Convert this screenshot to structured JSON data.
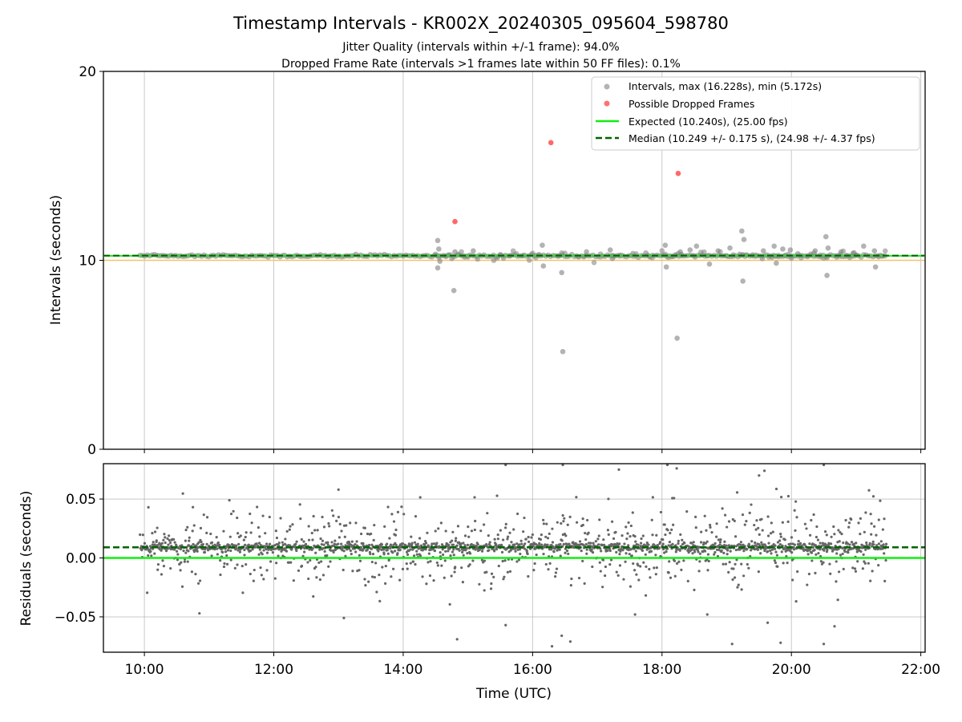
{
  "title": "Timestamp Intervals - KR002X_20240305_095604_598780",
  "subtitle_1": "Jitter Quality (intervals within +/-1 frame): 94.0%",
  "subtitle_2": "Dropped Frame Rate (intervals >1 frames late within 50 FF files): 0.1%",
  "colors": {
    "intervals": "#808080",
    "dropped": "#ff4d4d",
    "expected": "#11ee11",
    "median": "#006400",
    "reference_line": "#f3c36b",
    "grid": "#b0b0b0"
  },
  "chart_data": [
    {
      "type": "scatter",
      "panel": "intervals",
      "ylabel": "Intervals (seconds)",
      "xlim": [
        "09:22",
        "22:04"
      ],
      "ylim": [
        0,
        20
      ],
      "yticks": [
        0,
        10,
        20
      ],
      "ytick_labels": [
        "0",
        "10",
        "20"
      ],
      "xticks": [
        "10:00",
        "12:00",
        "14:00",
        "16:00",
        "18:00",
        "20:00",
        "22:00"
      ],
      "grid": "x",
      "legend_position": "top-right",
      "legend": [
        {
          "label": "Intervals, max (16.228s), min (5.172s)",
          "kind": "marker",
          "color": "#808080"
        },
        {
          "label": "Possible Dropped Frames",
          "kind": "marker",
          "color": "#ff4d4d"
        },
        {
          "label": "Expected (10.240s), (25.00 fps)",
          "kind": "line",
          "color": "#11ee11"
        },
        {
          "label": "Median (10.249 +/- 0.175 s), (24.98 +/- 4.37 fps)",
          "kind": "dashed",
          "color": "#006400"
        }
      ],
      "hlines": {
        "expected": 10.24,
        "median": 10.249,
        "reference": 10.0
      },
      "series": [
        {
          "name": "Intervals, max (16.228s), min (5.172s)",
          "baseline_span": [
            "09:56",
            "21:28"
          ],
          "baseline_value": 10.24,
          "outliers": [
            {
              "x": "14:32",
              "y": 11.05
            },
            {
              "x": "14:32",
              "y": 9.6
            },
            {
              "x": "14:33",
              "y": 10.6
            },
            {
              "x": "14:34",
              "y": 9.95
            },
            {
              "x": "14:47",
              "y": 8.4
            },
            {
              "x": "14:48",
              "y": 10.45
            },
            {
              "x": "15:05",
              "y": 10.5
            },
            {
              "x": "16:09",
              "y": 10.8
            },
            {
              "x": "16:10",
              "y": 9.7
            },
            {
              "x": "16:27",
              "y": 9.35
            },
            {
              "x": "16:28",
              "y": 5.17
            },
            {
              "x": "16:50",
              "y": 10.45
            },
            {
              "x": "17:12",
              "y": 10.55
            },
            {
              "x": "17:14",
              "y": 10.1
            },
            {
              "x": "18:03",
              "y": 10.8
            },
            {
              "x": "18:04",
              "y": 9.65
            },
            {
              "x": "18:14",
              "y": 5.88
            },
            {
              "x": "18:17",
              "y": 10.45
            },
            {
              "x": "18:26",
              "y": 10.55
            },
            {
              "x": "18:32",
              "y": 10.75
            },
            {
              "x": "18:44",
              "y": 9.8
            },
            {
              "x": "18:52",
              "y": 10.5
            },
            {
              "x": "19:03",
              "y": 10.65
            },
            {
              "x": "19:14",
              "y": 11.55
            },
            {
              "x": "19:15",
              "y": 8.9
            },
            {
              "x": "19:16",
              "y": 11.1
            },
            {
              "x": "19:34",
              "y": 10.5
            },
            {
              "x": "19:44",
              "y": 10.75
            },
            {
              "x": "19:46",
              "y": 9.85
            },
            {
              "x": "19:52",
              "y": 10.6
            },
            {
              "x": "19:59",
              "y": 10.55
            },
            {
              "x": "20:06",
              "y": 10.35
            },
            {
              "x": "20:22",
              "y": 10.5
            },
            {
              "x": "20:32",
              "y": 11.25
            },
            {
              "x": "20:33",
              "y": 9.2
            },
            {
              "x": "20:34",
              "y": 10.65
            },
            {
              "x": "20:46",
              "y": 10.45
            },
            {
              "x": "20:58",
              "y": 10.4
            },
            {
              "x": "21:07",
              "y": 10.75
            },
            {
              "x": "21:17",
              "y": 10.5
            },
            {
              "x": "21:18",
              "y": 9.65
            }
          ]
        },
        {
          "name": "Possible Dropped Frames",
          "points": [
            {
              "x": "14:48",
              "y": 12.05
            },
            {
              "x": "16:17",
              "y": 16.23
            },
            {
              "x": "18:15",
              "y": 14.6
            }
          ]
        }
      ]
    },
    {
      "type": "scatter",
      "panel": "residuals",
      "ylabel": "Residuals (seconds)",
      "xlabel": "Time (UTC)",
      "xlim": [
        "09:22",
        "22:04"
      ],
      "ylim": [
        -0.08,
        0.08
      ],
      "yticks": [
        -0.05,
        0.0,
        0.05
      ],
      "ytick_labels": [
        "−0.05",
        "0.00",
        "0.05"
      ],
      "xticks": [
        "10:00",
        "12:00",
        "14:00",
        "16:00",
        "18:00",
        "20:00",
        "22:00"
      ],
      "grid": "both",
      "hlines": {
        "expected": 0.0,
        "median": 0.009
      },
      "series": [
        {
          "name": "residuals",
          "span": [
            "09:56",
            "21:28"
          ],
          "center": 0.009,
          "spread": 0.018,
          "outliers": [
            {
              "x": "14:50",
              "y": -0.069
            },
            {
              "x": "13:05",
              "y": -0.051
            },
            {
              "x": "15:35",
              "y": -0.057
            },
            {
              "x": "16:18",
              "y": -0.075
            },
            {
              "x": "16:27",
              "y": -0.066
            },
            {
              "x": "16:35",
              "y": -0.071
            },
            {
              "x": "17:35",
              "y": -0.048
            },
            {
              "x": "18:42",
              "y": -0.048
            },
            {
              "x": "19:05",
              "y": -0.073
            },
            {
              "x": "19:38",
              "y": -0.055
            },
            {
              "x": "19:50",
              "y": -0.072
            },
            {
              "x": "20:30",
              "y": -0.073
            },
            {
              "x": "20:40",
              "y": -0.058
            },
            {
              "x": "16:28",
              "y": 0.079
            },
            {
              "x": "15:35",
              "y": 0.079
            },
            {
              "x": "18:05",
              "y": 0.079
            },
            {
              "x": "20:30",
              "y": 0.079
            },
            {
              "x": "17:20",
              "y": 0.075
            },
            {
              "x": "19:35",
              "y": 0.074
            },
            {
              "x": "19:30",
              "y": 0.07
            },
            {
              "x": "13:00",
              "y": 0.058
            }
          ]
        }
      ]
    }
  ]
}
